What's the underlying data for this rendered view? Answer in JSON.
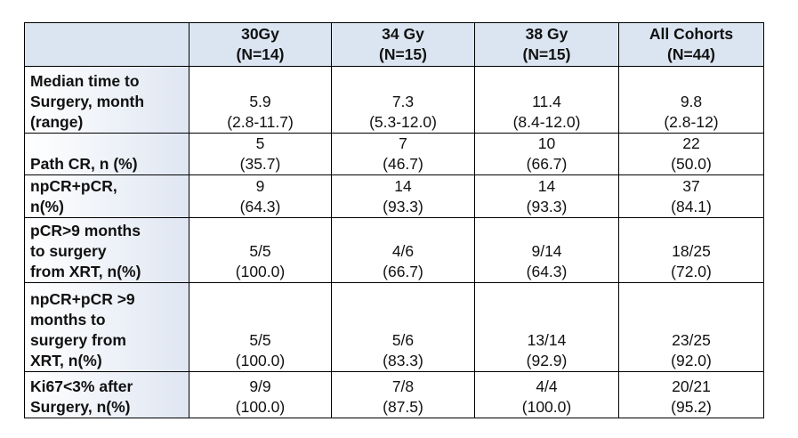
{
  "table": {
    "columns": [
      [
        "30Gy",
        "(N=14)"
      ],
      [
        "34 Gy",
        "(N=15)"
      ],
      [
        "38 Gy",
        "(N=15)"
      ],
      [
        "All Cohorts",
        "(N=44)"
      ]
    ],
    "rows": [
      {
        "label": [
          "Median time to",
          "Surgery, month",
          "(range)"
        ],
        "cells": [
          [
            "5.9",
            "(2.8-11.7)"
          ],
          [
            "7.3",
            "(5.3-12.0)"
          ],
          [
            "11.4",
            "(8.4-12.0)"
          ],
          [
            "9.8",
            "(2.8-12)"
          ]
        ]
      },
      {
        "label": [
          "Path CR, n (%)"
        ],
        "cells": [
          [
            "5",
            "(35.7)"
          ],
          [
            "7",
            "(46.7)"
          ],
          [
            "10",
            "(66.7)"
          ],
          [
            "22",
            "(50.0)"
          ]
        ]
      },
      {
        "label": [
          "npCR+pCR,",
          "n(%)"
        ],
        "cells": [
          [
            "9",
            "(64.3)"
          ],
          [
            "14",
            "(93.3)"
          ],
          [
            "14",
            "(93.3)"
          ],
          [
            "37",
            "(84.1)"
          ]
        ]
      },
      {
        "label": [
          "pCR>9 months",
          "to surgery",
          "from XRT, n(%)"
        ],
        "cells": [
          [
            "5/5",
            "(100.0)"
          ],
          [
            "4/6",
            "(66.7)"
          ],
          [
            "9/14",
            "(64.3)"
          ],
          [
            "18/25",
            "(72.0)"
          ]
        ]
      },
      {
        "label": [
          "npCR+pCR >9",
          "months to",
          "surgery from",
          "XRT, n(%)"
        ],
        "cells": [
          [
            "5/5",
            "(100.0)"
          ],
          [
            "5/6",
            "(83.3)"
          ],
          [
            "13/14",
            "(92.9)"
          ],
          [
            "23/25",
            "(92.0)"
          ]
        ]
      },
      {
        "label": [
          "Ki67<3% after",
          "Surgery, n(%)"
        ],
        "cells": [
          [
            "9/9",
            "(100.0)"
          ],
          [
            "7/8",
            "(87.5)"
          ],
          [
            "4/4",
            "(100.0)"
          ],
          [
            "20/21",
            "(95.2)"
          ]
        ]
      }
    ]
  }
}
